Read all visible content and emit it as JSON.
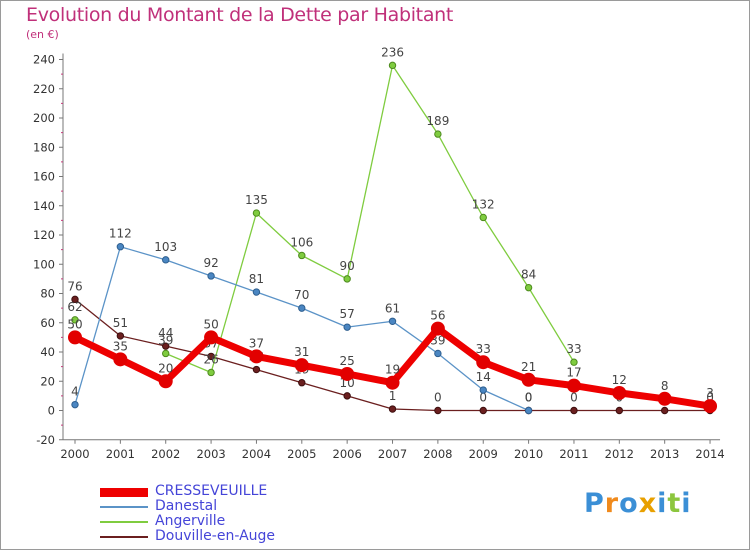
{
  "title": "Evolution du Montant de la Dette par Habitant",
  "subtitle": "(en €)",
  "logo": {
    "letters": [
      "P",
      "r",
      "o",
      "x",
      "i",
      "t",
      "i"
    ],
    "colors": [
      "#3b8fd6",
      "#f08a1c",
      "#3b8fd6",
      "#e8a000",
      "#3b8fd6",
      "#8cc63e",
      "#3b8fd6"
    ]
  },
  "chart_data": {
    "type": "line",
    "x": [
      "2000",
      "2001",
      "2002",
      "2003",
      "2004",
      "2005",
      "2006",
      "2007",
      "2008",
      "2009",
      "2010",
      "2011",
      "2012",
      "2013",
      "2014"
    ],
    "ylim": [
      -20,
      240
    ],
    "yticks": [
      -20,
      0,
      20,
      40,
      60,
      80,
      100,
      120,
      140,
      160,
      180,
      200,
      220,
      240
    ],
    "grid": false,
    "legend_position": "bottom-left",
    "series": [
      {
        "name": "Douville-en-Auge",
        "color": "#6b1f1f",
        "values": [
          76,
          51,
          44,
          37,
          28,
          19,
          10,
          1,
          0,
          0,
          0,
          0,
          0,
          0,
          0
        ],
        "labels": [
          "76",
          "51",
          "44",
          "37",
          "28",
          "19",
          "10",
          "1",
          "0",
          "0",
          "0",
          "0",
          "0",
          "0",
          "0"
        ]
      },
      {
        "name": "Angerville",
        "color": "#7fcc3f",
        "values": [
          62,
          null,
          39,
          26,
          135,
          106,
          90,
          236,
          189,
          132,
          84,
          33,
          null,
          null,
          null
        ],
        "labels": [
          "62",
          "",
          "39",
          "26",
          "135",
          "106",
          "90",
          "236",
          "189",
          "132",
          "84",
          "33",
          "",
          "",
          ""
        ]
      },
      {
        "name": "Danestal",
        "color": "#5b93c7",
        "values": [
          4,
          112,
          103,
          92,
          81,
          70,
          57,
          61,
          39,
          14,
          0,
          null,
          null,
          null,
          null
        ],
        "labels": [
          "4",
          "112",
          "103",
          "92",
          "81",
          "70",
          "57",
          "61",
          "39",
          "14",
          "0",
          "",
          "",
          "",
          ""
        ]
      },
      {
        "name": "CRESSEVEUILLE",
        "color": "#ee0000",
        "values": [
          50,
          35,
          20,
          50,
          37,
          31,
          25,
          19,
          56,
          33,
          21,
          17,
          12,
          8,
          3
        ],
        "labels": [
          "50",
          "35",
          "20",
          "50",
          "37",
          "31",
          "25",
          "19",
          "56",
          "33",
          "21",
          "17",
          "12",
          "8",
          "3"
        ]
      }
    ],
    "legend": [
      "CRESSEVEUILLE",
      "Danestal",
      "Angerville",
      "Douville-en-Auge"
    ]
  }
}
